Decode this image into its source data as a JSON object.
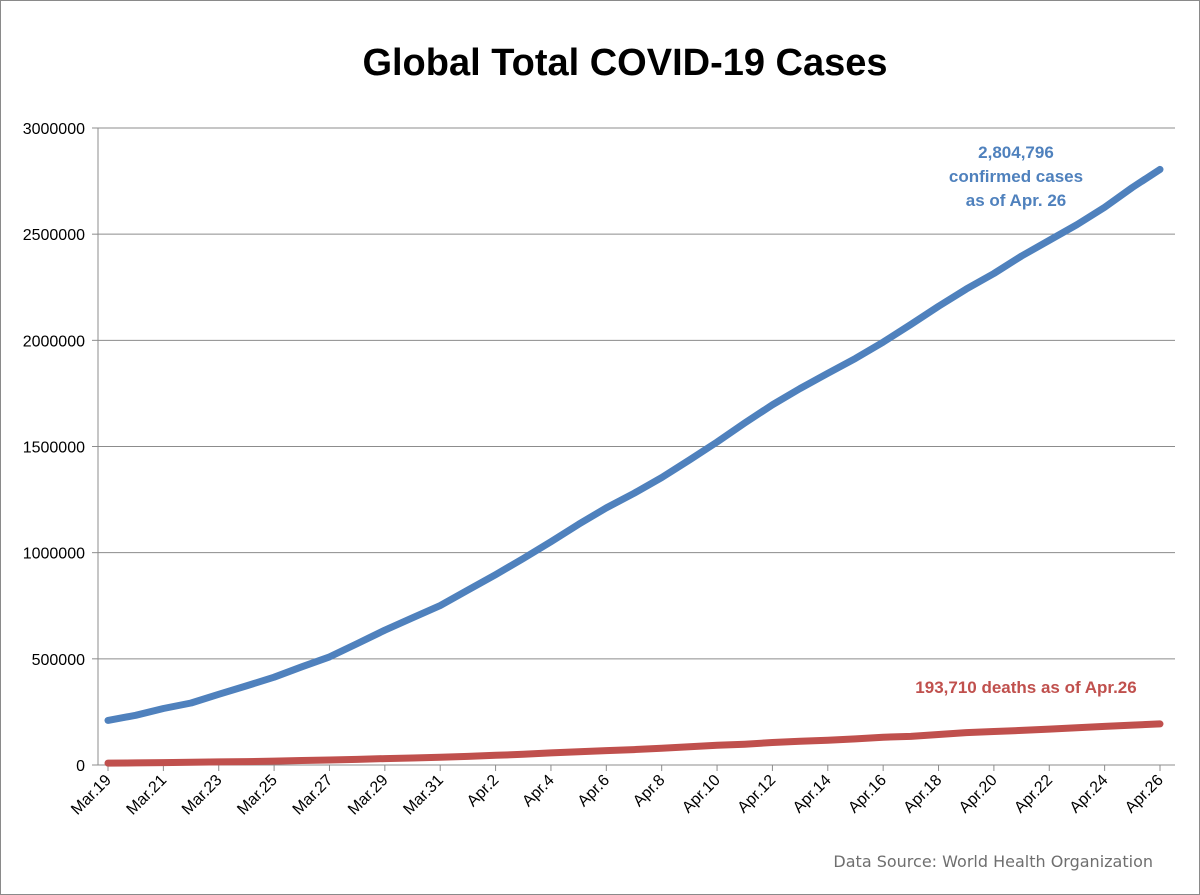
{
  "chart_data": {
    "type": "line",
    "title": "Global Total COVID-19 Cases",
    "xlabel": "",
    "ylabel": "",
    "ylim": [
      0,
      3000000
    ],
    "y_ticks": [
      "0",
      "500000",
      "1000000",
      "1500000",
      "2000000",
      "2500000",
      "3000000"
    ],
    "x_tick_labels": [
      "Mar.19",
      "Mar.21",
      "Mar.23",
      "Mar.25",
      "Mar.27",
      "Mar.29",
      "Mar.31",
      "Apr.2",
      "Apr.4",
      "Apr.6",
      "Apr.8",
      "Apr.10",
      "Apr.12",
      "Apr.14",
      "Apr.16",
      "Apr.18",
      "Apr.20",
      "Apr.22",
      "Apr.24",
      "Apr.26"
    ],
    "x": [
      "Mar.19",
      "Mar.20",
      "Mar.21",
      "Mar.22",
      "Mar.23",
      "Mar.24",
      "Mar.25",
      "Mar.26",
      "Mar.27",
      "Mar.28",
      "Mar.29",
      "Mar.30",
      "Mar.31",
      "Apr.1",
      "Apr.2",
      "Apr.3",
      "Apr.4",
      "Apr.5",
      "Apr.6",
      "Apr.7",
      "Apr.8",
      "Apr.9",
      "Apr.10",
      "Apr.11",
      "Apr.12",
      "Apr.13",
      "Apr.14",
      "Apr.15",
      "Apr.16",
      "Apr.17",
      "Apr.18",
      "Apr.19",
      "Apr.20",
      "Apr.21",
      "Apr.22",
      "Apr.23",
      "Apr.24",
      "Apr.25",
      "Apr.26"
    ],
    "grid": true,
    "legend": false,
    "series": [
      {
        "color": "#4f81bd",
        "values": [
          209839,
          234073,
          266073,
          292142,
          332930,
          372757,
          413467,
          462684,
          509164,
          571678,
          634835,
          693224,
          750890,
          823626,
          896450,
          972303,
          1051635,
          1133758,
          1210956,
          1279722,
          1353361,
          1436198,
          1521252,
          1610909,
          1696588,
          1773084,
          1844863,
          1914916,
          1991562,
          2074529,
          2160207,
          2241359,
          2314621,
          2397216,
          2471136,
          2544792,
          2626321,
          2719897,
          2804796
        ]
      },
      {
        "color": "#c0504d",
        "values": [
          8778,
          9840,
          11184,
          12783,
          14510,
          16231,
          18433,
          21031,
          23335,
          26494,
          29957,
          33106,
          36405,
          40598,
          45526,
          50321,
          56986,
          62784,
          67594,
          72614,
          79235,
          85711,
          92798,
          97939,
          105952,
          111652,
          117021,
          123010,
          130885,
          134603,
          143800,
          152551,
          157847,
          162956,
          169006,
          175694,
          181938,
          187705,
          193710
        ]
      }
    ],
    "annotations": {
      "confirmed_line1": "2,804,796",
      "confirmed_line2": "confirmed cases",
      "confirmed_line3": "as of Apr. 26",
      "deaths": "193,710 deaths as of Apr.26"
    },
    "source": "Data Source: World Health Organization"
  }
}
